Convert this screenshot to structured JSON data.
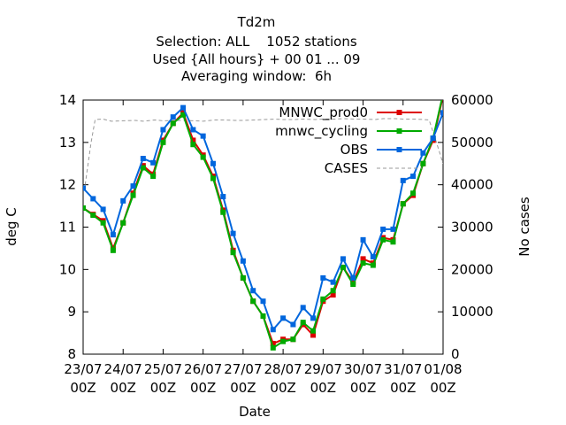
{
  "chart_data": {
    "type": "line",
    "title_lines": [
      "Td2m",
      "Selection: ALL    1052 stations",
      "Used {All hours} + 00 01 ... 09",
      "Averaging window:  6h"
    ],
    "xlabel": "Date",
    "ylabel": "deg C",
    "y2label": "No cases",
    "xlim": [
      0,
      9
    ],
    "ylim": [
      8,
      14
    ],
    "y2lim": [
      0,
      60000
    ],
    "grid": false,
    "legend_position": "top-right",
    "x_ticks": [
      {
        "day": "23/07",
        "hour": "00Z"
      },
      {
        "day": "24/07",
        "hour": "00Z"
      },
      {
        "day": "25/07",
        "hour": "00Z"
      },
      {
        "day": "26/07",
        "hour": "00Z"
      },
      {
        "day": "27/07",
        "hour": "00Z"
      },
      {
        "day": "28/07",
        "hour": "00Z"
      },
      {
        "day": "29/07",
        "hour": "00Z"
      },
      {
        "day": "30/07",
        "hour": "00Z"
      },
      {
        "day": "31/07",
        "hour": "00Z"
      },
      {
        "day": "01/08",
        "hour": "00Z"
      }
    ],
    "y_ticks": [
      "8",
      "9",
      "10",
      "11",
      "12",
      "13",
      "14"
    ],
    "y2_ticks": [
      "0",
      "10000",
      "20000",
      "30000",
      "40000",
      "50000",
      "60000"
    ],
    "series": [
      {
        "name": "MNWC_prod0",
        "color": "#dd0000",
        "axis": "y",
        "x": [
          0,
          0.25,
          0.5,
          0.75,
          1,
          1.25,
          1.5,
          1.75,
          2,
          2.25,
          2.5,
          2.75,
          3,
          3.25,
          3.5,
          3.75,
          4,
          4.25,
          4.5,
          4.75,
          5,
          5.25,
          5.5,
          5.75,
          6,
          6.25,
          6.5,
          6.75,
          7,
          7.25,
          7.5,
          7.75,
          8,
          8.25,
          8.5,
          8.75,
          9
        ],
        "values": [
          11.45,
          11.3,
          11.15,
          10.5,
          11.1,
          11.8,
          12.45,
          12.25,
          13.05,
          13.45,
          13.7,
          13.05,
          12.7,
          12.2,
          11.4,
          10.45,
          9.8,
          9.25,
          8.9,
          8.25,
          8.35,
          8.35,
          8.7,
          8.45,
          9.25,
          9.4,
          10.05,
          9.7,
          10.25,
          10.15,
          10.75,
          10.7,
          11.55,
          11.75,
          12.5,
          13.05,
          14.1
        ]
      },
      {
        "name": "mnwc_cycling",
        "color": "#00aa00",
        "axis": "y",
        "x": [
          0,
          0.25,
          0.5,
          0.75,
          1,
          1.25,
          1.5,
          1.75,
          2,
          2.25,
          2.5,
          2.75,
          3,
          3.25,
          3.5,
          3.75,
          4,
          4.25,
          4.5,
          4.75,
          5,
          5.25,
          5.5,
          5.75,
          6,
          6.25,
          6.5,
          6.75,
          7,
          7.25,
          7.5,
          7.75,
          8,
          8.25,
          8.5,
          8.75,
          9
        ],
        "values": [
          11.45,
          11.28,
          11.1,
          10.45,
          11.1,
          11.75,
          12.4,
          12.2,
          13.0,
          13.45,
          13.65,
          12.95,
          12.65,
          12.15,
          11.35,
          10.4,
          9.8,
          9.25,
          8.9,
          8.15,
          8.3,
          8.35,
          8.75,
          8.55,
          9.3,
          9.5,
          10.05,
          9.65,
          10.15,
          10.1,
          10.7,
          10.65,
          11.55,
          11.8,
          12.5,
          13.1,
          14.15
        ]
      },
      {
        "name": "OBS",
        "color": "#0066dd",
        "axis": "y",
        "x": [
          0,
          0.25,
          0.5,
          0.75,
          1,
          1.25,
          1.5,
          1.75,
          2,
          2.25,
          2.5,
          2.75,
          3,
          3.25,
          3.5,
          3.75,
          4,
          4.25,
          4.5,
          4.75,
          5,
          5.25,
          5.5,
          5.75,
          6,
          6.25,
          6.5,
          6.75,
          7,
          7.25,
          7.5,
          7.75,
          8,
          8.25,
          8.5,
          8.75,
          9
        ],
        "values": [
          11.92,
          11.67,
          11.42,
          10.82,
          11.62,
          11.97,
          12.62,
          12.52,
          13.3,
          13.6,
          13.82,
          13.3,
          13.15,
          12.5,
          11.72,
          10.85,
          10.2,
          9.5,
          9.25,
          8.58,
          8.85,
          8.7,
          9.1,
          8.85,
          9.8,
          9.7,
          10.25,
          9.8,
          10.7,
          10.3,
          10.95,
          10.95,
          12.1,
          12.2,
          12.75,
          13.1,
          13.7
        ]
      },
      {
        "name": "CASES",
        "color": "#999999",
        "axis": "y2",
        "dashed": true,
        "x": [
          0.05,
          0.2,
          0.3,
          0.5,
          0.7,
          1.0,
          1.3,
          1.5,
          1.8,
          2.0,
          2.3,
          2.5,
          2.8,
          3.0,
          3.3,
          3.5,
          3.8,
          4.0,
          4.3,
          4.5,
          4.8,
          5.0,
          5.3,
          5.5,
          5.8,
          6.0,
          6.3,
          6.5,
          6.8,
          7.0,
          7.3,
          7.5,
          7.8,
          8.0,
          8.3,
          8.5,
          8.65,
          8.8,
          9.0
        ],
        "values": [
          40000,
          50000,
          55400,
          55500,
          55000,
          55100,
          55200,
          55000,
          55300,
          55100,
          55200,
          55200,
          55100,
          55000,
          55300,
          55300,
          55200,
          55200,
          55300,
          55400,
          55500,
          55400,
          55400,
          55500,
          55400,
          55500,
          55500,
          55600,
          55500,
          55500,
          55400,
          55600,
          55600,
          55500,
          55500,
          55400,
          55300,
          51000,
          45000
        ]
      }
    ]
  }
}
